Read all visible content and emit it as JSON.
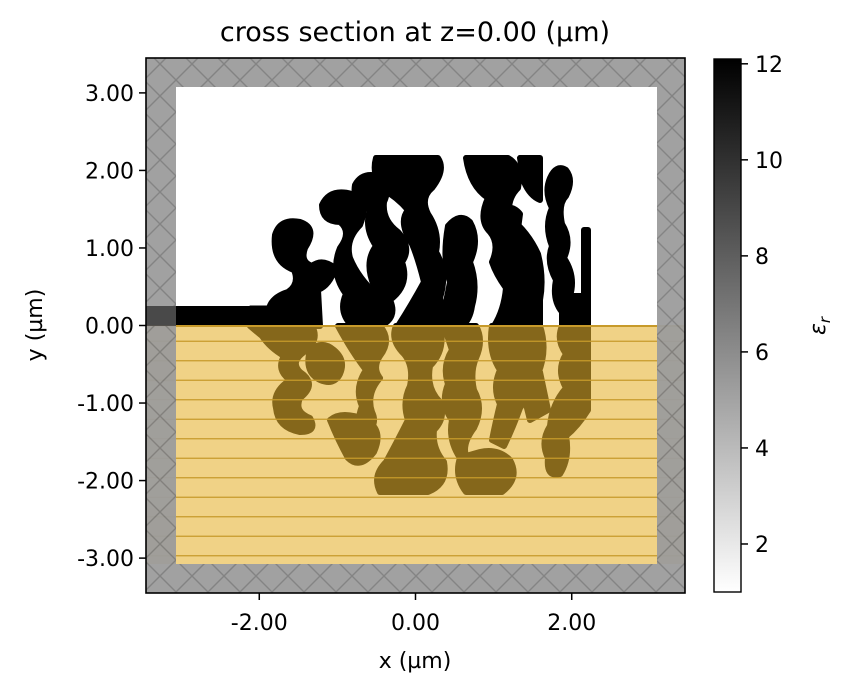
{
  "chart_data": {
    "type": "heatmap",
    "title": "cross section at z=0.00 (µm)",
    "xlabel": "x (µm)",
    "ylabel": "y (µm)",
    "xlim": [
      -3.45,
      3.45
    ],
    "ylim": [
      -3.45,
      3.45
    ],
    "xticks": [
      -2.0,
      0.0,
      2.0
    ],
    "xtick_labels": [
      "-2.00",
      "0.00",
      "2.00"
    ],
    "yticks": [
      3.0,
      2.0,
      1.0,
      0.0,
      -1.0,
      -2.0,
      -3.0
    ],
    "ytick_labels": [
      "3.00",
      "2.00",
      "1.00",
      "0.00",
      "-1.00",
      "-2.00",
      "-3.00"
    ],
    "grid": false,
    "colormap": "binary",
    "colorbar": {
      "label": "εr",
      "range": [
        1.0,
        12.1
      ],
      "ticks": [
        2,
        4,
        6,
        8,
        10,
        12
      ],
      "tick_labels": [
        "2",
        "4",
        "6",
        "8",
        "10",
        "12"
      ]
    },
    "structures": [
      {
        "kind": "design_region",
        "permittivity": 12.1,
        "x": [
          -0.9,
          2.2
        ],
        "y": [
          -2.1,
          2.1
        ]
      },
      {
        "kind": "input_waveguide",
        "permittivity": 12.1,
        "x": [
          -3.45,
          -0.9
        ],
        "y": [
          0.0,
          0.25
        ]
      }
    ],
    "overlays": [
      {
        "kind": "pml_boundary",
        "pattern": "hatched",
        "color": "#999999",
        "thickness": 0.375
      },
      {
        "kind": "symmetry_plane",
        "pattern": "horizontal-stripes",
        "color": "#e6b22e",
        "y": [
          -3.1,
          0.0
        ]
      }
    ]
  }
}
